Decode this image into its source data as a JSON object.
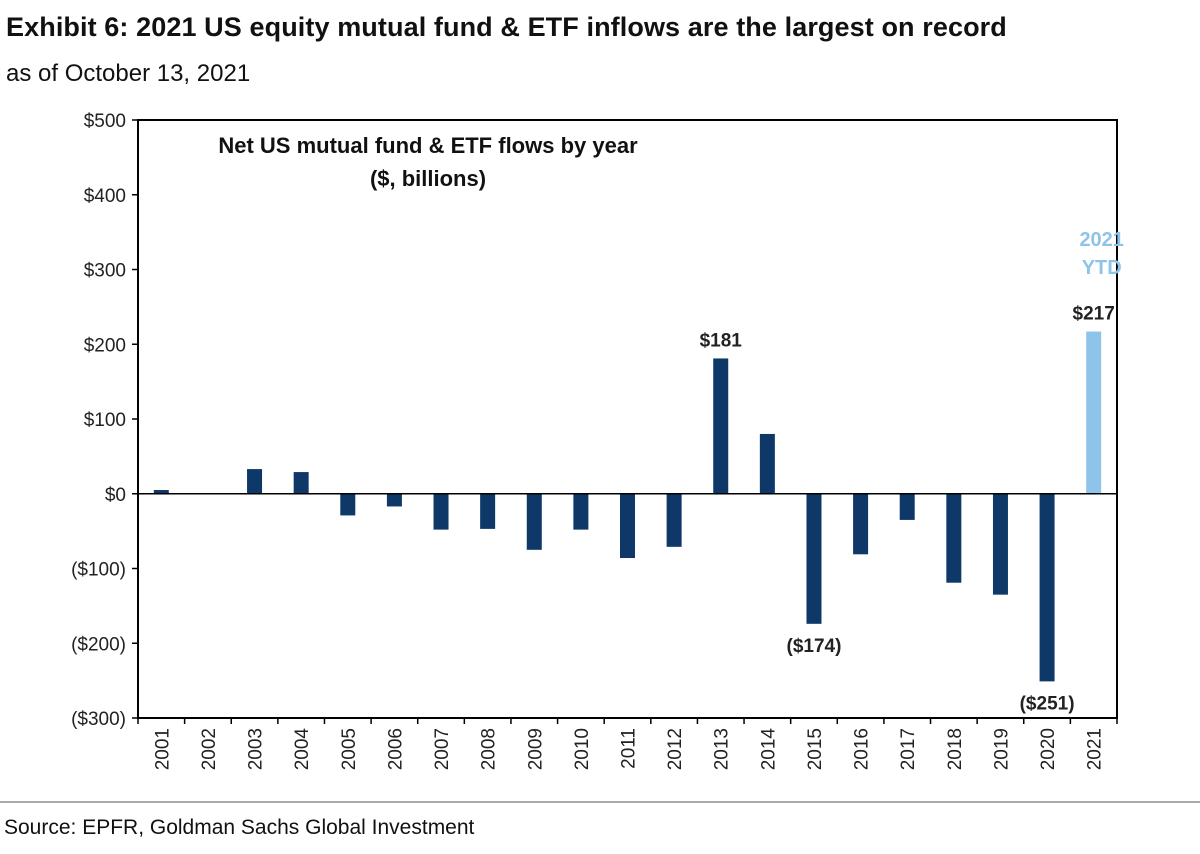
{
  "header": {
    "title": "Exhibit 6: 2021 US equity mutual fund & ETF inflows are the largest on record",
    "subtitle": "as of October 13, 2021"
  },
  "footer": {
    "source": "Source: EPFR, Goldman Sachs Global Investment"
  },
  "chart_data": {
    "type": "bar",
    "title": "Net US mutual fund & ETF flows by year",
    "subtitle": "($, billions)",
    "xlabel": "",
    "ylabel": "",
    "ylim": [
      -300,
      500
    ],
    "y_ticks": [
      500,
      400,
      300,
      200,
      100,
      0,
      -100,
      -200,
      -300
    ],
    "y_tick_labels": [
      "$500",
      "$400",
      "$300",
      "$200",
      "$100",
      "$0",
      "($100)",
      "($200)",
      "($300)"
    ],
    "grid": false,
    "legend": "none",
    "categories": [
      "2001",
      "2002",
      "2003",
      "2004",
      "2005",
      "2006",
      "2007",
      "2008",
      "2009",
      "2010",
      "2011",
      "2012",
      "2013",
      "2014",
      "2015",
      "2016",
      "2017",
      "2018",
      "2019",
      "2020",
      "2021"
    ],
    "values": [
      5,
      1,
      33,
      29,
      -29,
      -17,
      -48,
      -47,
      -75,
      -48,
      -86,
      -71,
      181,
      80,
      -174,
      -81,
      -35,
      -119,
      -135,
      -251,
      217
    ],
    "data_labels": [
      {
        "category": "2013",
        "text": "$181"
      },
      {
        "category": "2015",
        "text": "($174)"
      },
      {
        "category": "2020",
        "text": "($251)"
      },
      {
        "category": "2021",
        "text": "$217"
      }
    ],
    "annotations": [
      {
        "category": "2021",
        "lines": [
          "2021",
          "YTD"
        ]
      }
    ],
    "colors": {
      "bar": "#0d3868",
      "highlight": "#8ec3ea",
      "text": "#222222",
      "frame": "#000000"
    },
    "highlight_category": "2021"
  }
}
